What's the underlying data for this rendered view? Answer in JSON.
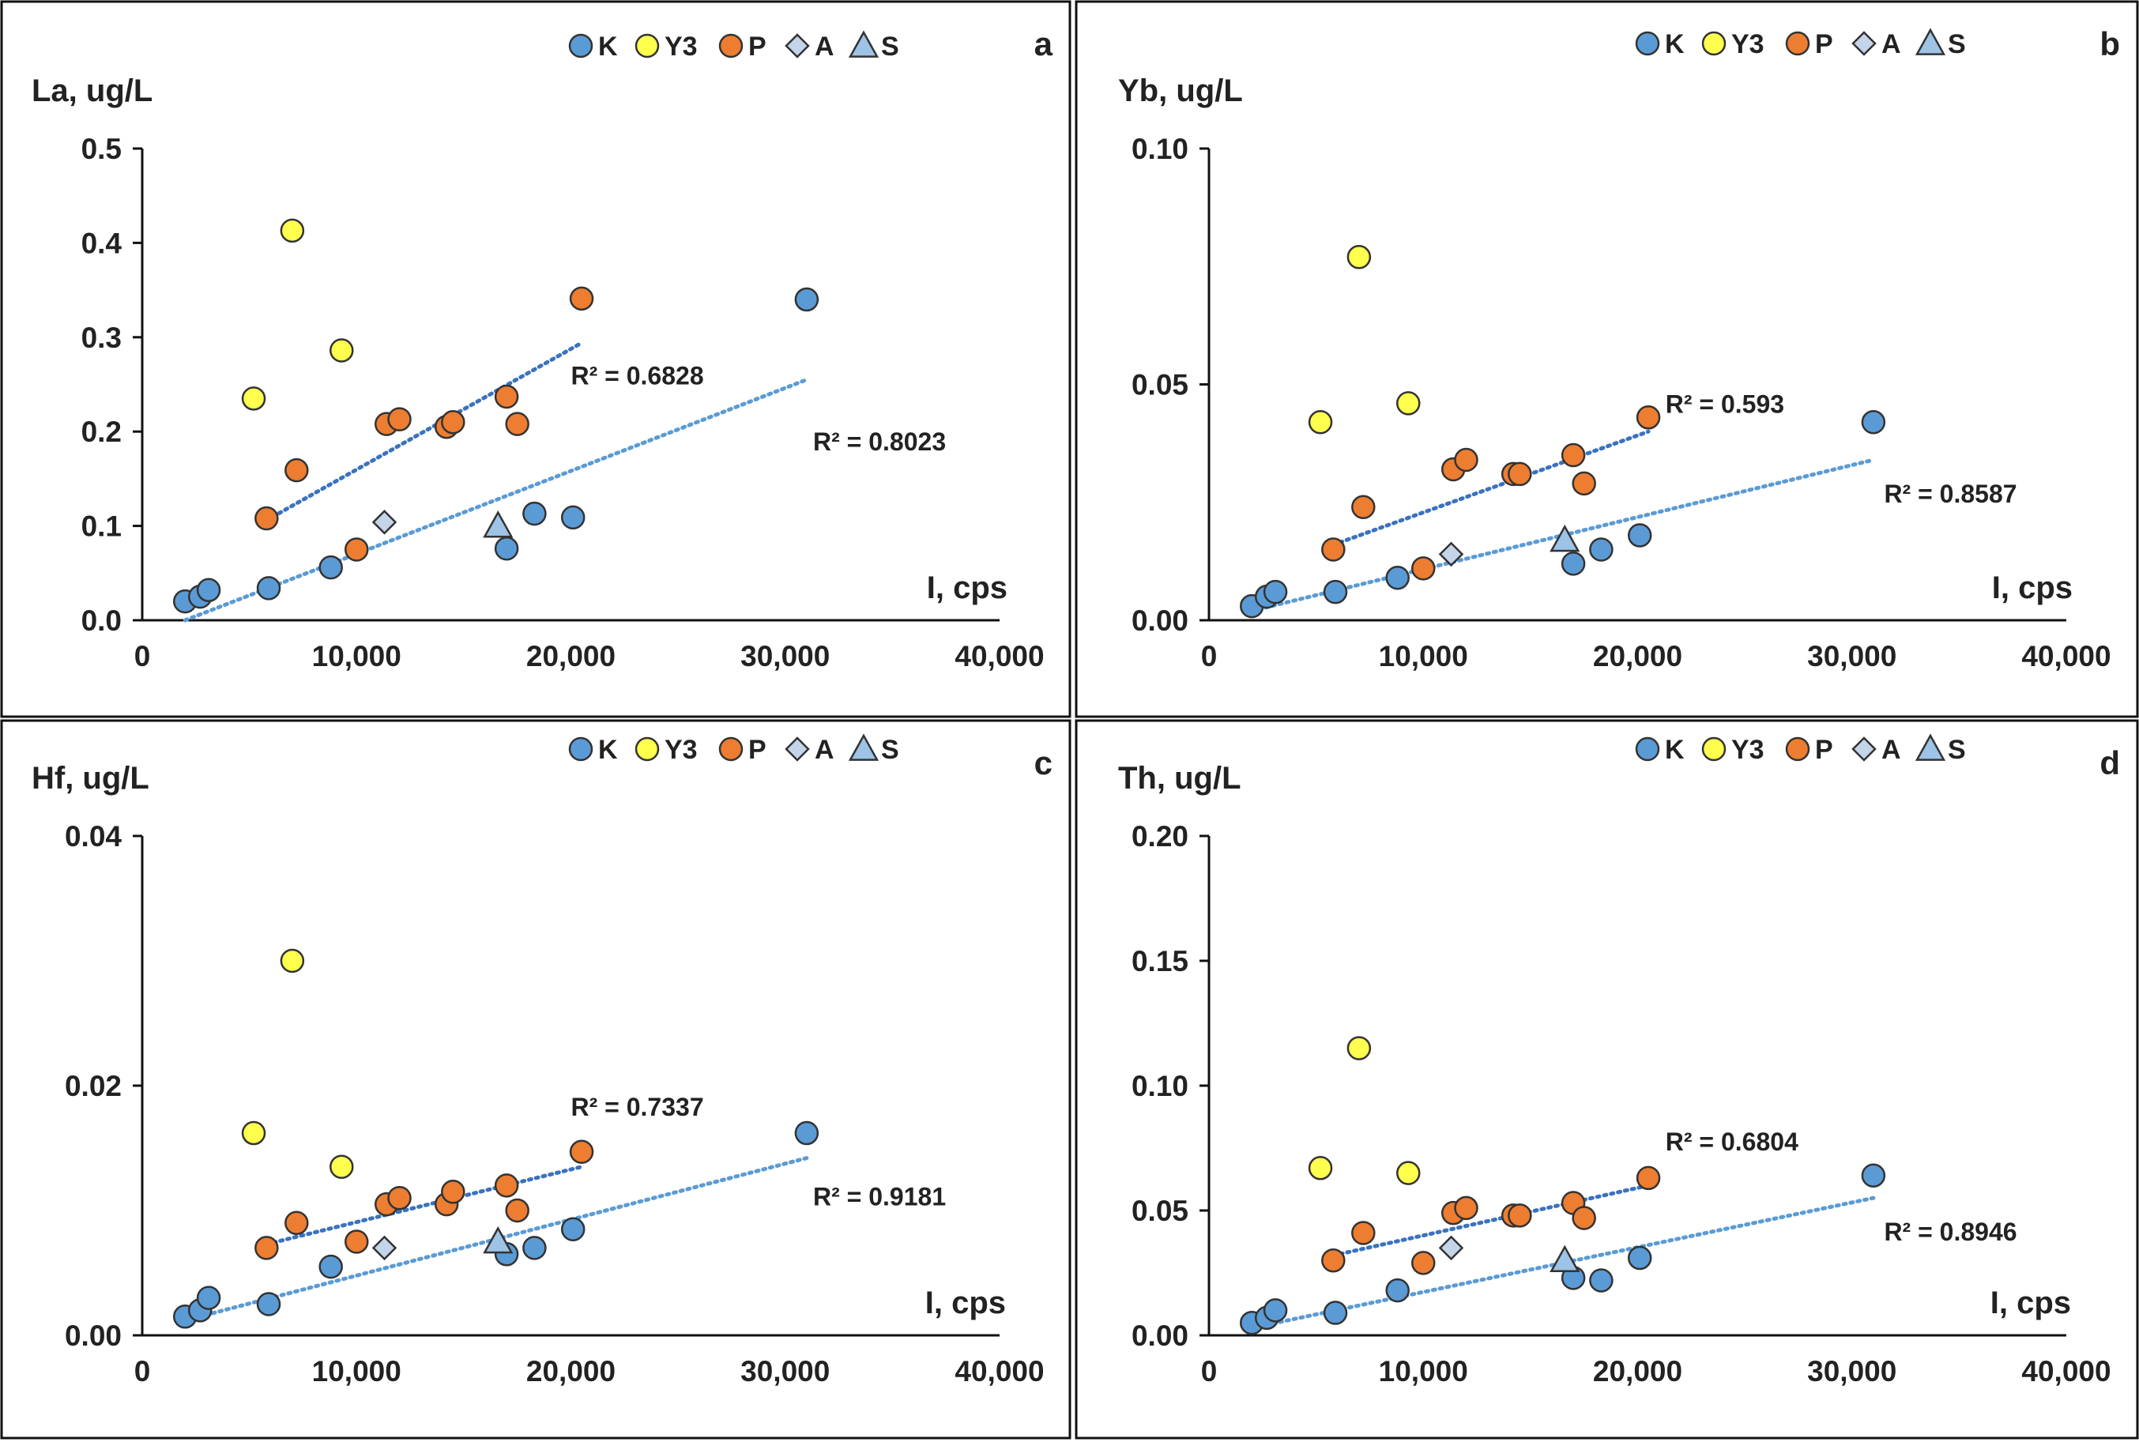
{
  "colors": {
    "K": "#5b9bd5",
    "Y3": "#ffff4d",
    "P": "#ed7d31",
    "A": "#c4d5ea",
    "S": "#9dc3e6",
    "trend_K": "#5b9bd5",
    "trend_P": "#3a72c0",
    "marker_edge": "#333333"
  },
  "legend": [
    {
      "key": "K",
      "label": "K",
      "marker": "circle"
    },
    {
      "key": "Y3",
      "label": "Y3",
      "marker": "circle"
    },
    {
      "key": "P",
      "label": "P",
      "marker": "circle"
    },
    {
      "key": "A",
      "label": "A",
      "marker": "diamond"
    },
    {
      "key": "S",
      "label": "S",
      "marker": "triangle"
    }
  ],
  "chart_data": [
    {
      "type": "scatter",
      "panel": "a",
      "ylabel": "La, ug/L",
      "xlabel": "I, cps",
      "xlim": [
        0,
        40000
      ],
      "ylim": [
        0,
        0.5
      ],
      "xticks": [
        "0",
        "10,000",
        "20,000",
        "30,000",
        "40,000"
      ],
      "yticks": [
        "0.0",
        "0.1",
        "0.2",
        "0.3",
        "0.4",
        "0.5"
      ],
      "legend_position": "top-center",
      "series": [
        {
          "name": "K",
          "points": [
            [
              2000,
              0.02
            ],
            [
              2700,
              0.025
            ],
            [
              3100,
              0.032
            ],
            [
              5900,
              0.034
            ],
            [
              8800,
              0.056
            ],
            [
              17000,
              0.076
            ],
            [
              18300,
              0.113
            ],
            [
              20100,
              0.109
            ],
            [
              31000,
              0.34
            ]
          ]
        },
        {
          "name": "Y3",
          "points": [
            [
              5200,
              0.235
            ],
            [
              7000,
              0.413
            ],
            [
              9300,
              0.286
            ]
          ]
        },
        {
          "name": "P",
          "points": [
            [
              5800,
              0.108
            ],
            [
              7200,
              0.159
            ],
            [
              10000,
              0.075
            ],
            [
              11400,
              0.208
            ],
            [
              12000,
              0.213
            ],
            [
              14200,
              0.205
            ],
            [
              14500,
              0.21
            ],
            [
              17000,
              0.237
            ],
            [
              17500,
              0.208
            ],
            [
              20500,
              0.341
            ]
          ]
        },
        {
          "name": "A",
          "points": [
            [
              11300,
              0.104
            ]
          ]
        },
        {
          "name": "S",
          "points": [
            [
              16600,
              0.1
            ]
          ]
        }
      ],
      "trendlines": [
        {
          "series": "P",
          "x": [
            5800,
            20500
          ],
          "y": [
            0.106,
            0.294
          ],
          "r2_label": "R² = 0.6828"
        },
        {
          "series": "K",
          "x": [
            2000,
            31000
          ],
          "y": [
            0,
            0.255
          ],
          "r2_label": "R² = 0.8023"
        }
      ]
    },
    {
      "type": "scatter",
      "panel": "b",
      "ylabel": "Yb, ug/L",
      "xlabel": "I, cps",
      "xlim": [
        0,
        40000
      ],
      "ylim": [
        0,
        0.1
      ],
      "xticks": [
        "0",
        "10,000",
        "20,000",
        "30,000",
        "40,000"
      ],
      "yticks": [
        "0.00",
        "0.05",
        "0.10"
      ],
      "legend_position": "top-center",
      "series": [
        {
          "name": "K",
          "points": [
            [
              2000,
              0.003
            ],
            [
              2700,
              0.005
            ],
            [
              3100,
              0.006
            ],
            [
              5900,
              0.006
            ],
            [
              8800,
              0.009
            ],
            [
              17000,
              0.012
            ],
            [
              18300,
              0.015
            ],
            [
              20100,
              0.018
            ],
            [
              31000,
              0.042
            ]
          ]
        },
        {
          "name": "Y3",
          "points": [
            [
              5200,
              0.042
            ],
            [
              7000,
              0.077
            ],
            [
              9300,
              0.046
            ]
          ]
        },
        {
          "name": "P",
          "points": [
            [
              5800,
              0.015
            ],
            [
              7200,
              0.024
            ],
            [
              10000,
              0.011
            ],
            [
              11400,
              0.032
            ],
            [
              12000,
              0.034
            ],
            [
              14200,
              0.031
            ],
            [
              14500,
              0.031
            ],
            [
              17000,
              0.035
            ],
            [
              17500,
              0.029
            ],
            [
              20500,
              0.043
            ]
          ]
        },
        {
          "name": "A",
          "points": [
            [
              11300,
              0.014
            ]
          ]
        },
        {
          "name": "S",
          "points": [
            [
              16600,
              0.017
            ]
          ]
        }
      ],
      "trendlines": [
        {
          "series": "P",
          "x": [
            5800,
            20500
          ],
          "y": [
            0.016,
            0.04
          ],
          "r2_label": "R² = 0.593"
        },
        {
          "series": "K",
          "x": [
            2000,
            31000
          ],
          "y": [
            0.002,
            0.034
          ],
          "r2_label": "R² = 0.8587"
        }
      ]
    },
    {
      "type": "scatter",
      "panel": "c",
      "ylabel": "Hf, ug/L",
      "xlabel": "I, cps",
      "xlim": [
        0,
        40000
      ],
      "ylim": [
        0,
        0.04
      ],
      "xticks": [
        "0",
        "10,000",
        "20,000",
        "30,000",
        "40,000"
      ],
      "yticks": [
        "0.00",
        "0.02",
        "0.04"
      ],
      "legend_position": "top-center",
      "series": [
        {
          "name": "K",
          "points": [
            [
              2000,
              0.0015
            ],
            [
              2700,
              0.002
            ],
            [
              3100,
              0.003
            ],
            [
              5900,
              0.0025
            ],
            [
              8800,
              0.0055
            ],
            [
              17000,
              0.0065
            ],
            [
              18300,
              0.007
            ],
            [
              20100,
              0.0085
            ],
            [
              31000,
              0.0162
            ]
          ]
        },
        {
          "name": "Y3",
          "points": [
            [
              5200,
              0.0162
            ],
            [
              7000,
              0.03
            ],
            [
              9300,
              0.0135
            ]
          ]
        },
        {
          "name": "P",
          "points": [
            [
              5800,
              0.007
            ],
            [
              7200,
              0.009
            ],
            [
              10000,
              0.0075
            ],
            [
              11400,
              0.0105
            ],
            [
              12000,
              0.011
            ],
            [
              14200,
              0.0105
            ],
            [
              14500,
              0.0115
            ],
            [
              17000,
              0.012
            ],
            [
              17500,
              0.01
            ],
            [
              20500,
              0.0147
            ]
          ]
        },
        {
          "name": "A",
          "points": [
            [
              11300,
              0.007
            ]
          ]
        },
        {
          "name": "S",
          "points": [
            [
              16600,
              0.0075
            ]
          ]
        }
      ],
      "trendlines": [
        {
          "series": "P",
          "x": [
            5800,
            20500
          ],
          "y": [
            0.0073,
            0.0135
          ],
          "r2_label": "R² = 0.7337"
        },
        {
          "series": "K",
          "x": [
            2000,
            31000
          ],
          "y": [
            0.0012,
            0.0142
          ],
          "r2_label": "R² = 0.9181"
        }
      ]
    },
    {
      "type": "scatter",
      "panel": "d",
      "ylabel": "Th, ug/L",
      "xlabel": "I, cps",
      "xlim": [
        0,
        40000
      ],
      "ylim": [
        0,
        0.2
      ],
      "xticks": [
        "0",
        "10,000",
        "20,000",
        "30,000",
        "40,000"
      ],
      "yticks": [
        "0.00",
        "0.05",
        "0.10",
        "0.15",
        "0.20"
      ],
      "legend_position": "top-center",
      "series": [
        {
          "name": "K",
          "points": [
            [
              2000,
              0.005
            ],
            [
              2700,
              0.007
            ],
            [
              3100,
              0.01
            ],
            [
              5900,
              0.009
            ],
            [
              8800,
              0.018
            ],
            [
              17000,
              0.023
            ],
            [
              18300,
              0.022
            ],
            [
              20100,
              0.031
            ],
            [
              31000,
              0.064
            ]
          ]
        },
        {
          "name": "Y3",
          "points": [
            [
              5200,
              0.067
            ],
            [
              7000,
              0.115
            ],
            [
              9300,
              0.065
            ]
          ]
        },
        {
          "name": "P",
          "points": [
            [
              5800,
              0.03
            ],
            [
              7200,
              0.041
            ],
            [
              10000,
              0.029
            ],
            [
              11400,
              0.049
            ],
            [
              12000,
              0.051
            ],
            [
              14200,
              0.048
            ],
            [
              14500,
              0.048
            ],
            [
              17000,
              0.053
            ],
            [
              17500,
              0.047
            ],
            [
              20500,
              0.063
            ]
          ]
        },
        {
          "name": "A",
          "points": [
            [
              11300,
              0.035
            ]
          ]
        },
        {
          "name": "S",
          "points": [
            [
              16600,
              0.03
            ]
          ]
        }
      ],
      "trendlines": [
        {
          "series": "P",
          "x": [
            5800,
            20500
          ],
          "y": [
            0.032,
            0.06
          ],
          "r2_label": "R² = 0.6804"
        },
        {
          "series": "K",
          "x": [
            2000,
            31000
          ],
          "y": [
            0.003,
            0.055
          ],
          "r2_label": "R² = 0.8946"
        }
      ]
    }
  ]
}
